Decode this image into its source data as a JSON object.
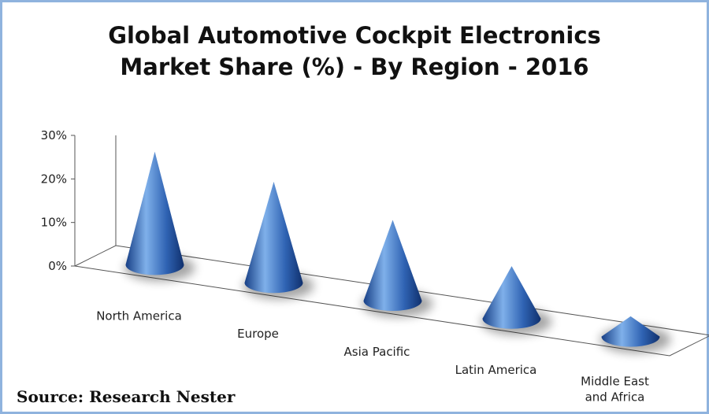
{
  "chart_data": {
    "type": "bar",
    "shape": "cone-3d",
    "title_line1": "Global Automotive Cockpit Electronics",
    "title_line2": "Market Share (%) - By Region - 2016",
    "categories": [
      "North America",
      "Europe",
      "Asia Pacific",
      "Latin America",
      "Middle East and Africa"
    ],
    "category_lines": [
      [
        "North America"
      ],
      [
        "Europe"
      ],
      [
        "Asia Pacific"
      ],
      [
        "Latin America"
      ],
      [
        "Middle East",
        "and Africa"
      ]
    ],
    "values": [
      28,
      25,
      20,
      13,
      5
    ],
    "unit": "%",
    "ylim": [
      0,
      30
    ],
    "yticks": [
      "0%",
      "10%",
      "20%",
      "30%"
    ],
    "grid": false,
    "legend": "none",
    "colors": {
      "cone_light": "#7fb0ea",
      "cone_mid": "#3c72c4",
      "cone_dark": "#10306d",
      "frame_border": "#8fb3de",
      "axis": "#555555"
    }
  },
  "source": "Source: Research Nester"
}
